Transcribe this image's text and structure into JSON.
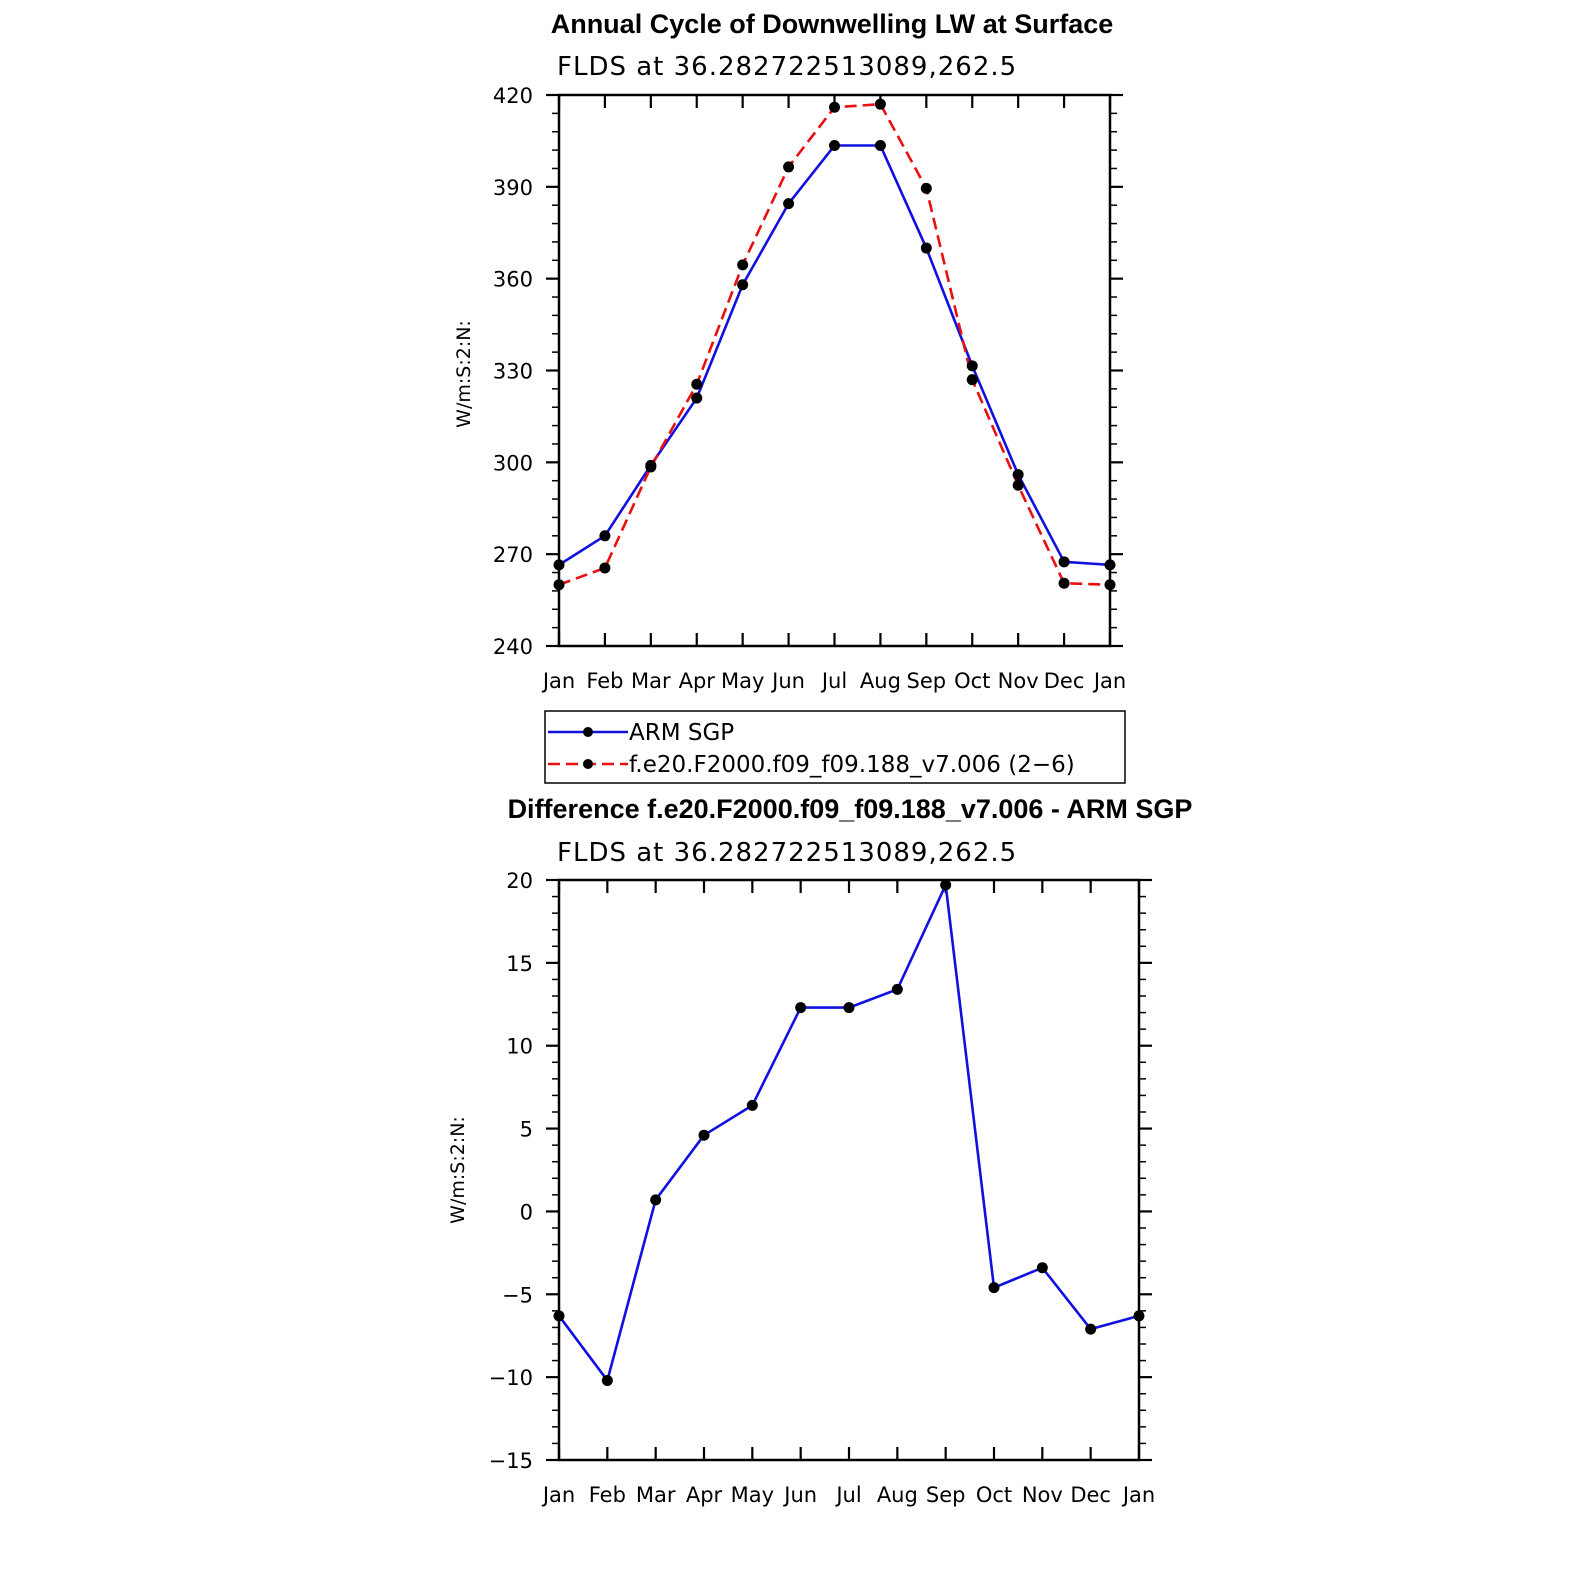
{
  "chart_data": [
    {
      "type": "line",
      "title": "Annual Cycle of Downwelling LW at Surface",
      "subtitle": "FLDS at 36.282722513089,262.5",
      "ylabel": "W/m:S:2:N:",
      "xlabel": "",
      "categories": [
        "Jan",
        "Feb",
        "Mar",
        "Apr",
        "May",
        "Jun",
        "Jul",
        "Aug",
        "Sep",
        "Oct",
        "Nov",
        "Dec",
        "Jan"
      ],
      "ylim": [
        240,
        420
      ],
      "yticks": [
        "240",
        "270",
        "300",
        "330",
        "360",
        "390",
        "420"
      ],
      "series": [
        {
          "name": "ARM SGP",
          "color": "#1010e0",
          "dash": "solid",
          "values": [
            266.5,
            276,
            299,
            321,
            358,
            384.5,
            403.5,
            403.5,
            370,
            331.5,
            296,
            267.5,
            266.5
          ]
        },
        {
          "name": "f.e20.F2000.f09_f09.188_v7.006 (2−6)",
          "color": "#e81010",
          "dash": "dashed",
          "values": [
            260,
            265.5,
            298.5,
            325.5,
            364.5,
            396.5,
            416,
            417,
            389.5,
            327,
            292.5,
            260.5,
            260
          ]
        }
      ],
      "legend": {
        "placement": "bottom",
        "entries": [
          "ARM SGP",
          "f.e20.F2000.f09_f09.188_v7.006 (2−6)"
        ]
      }
    },
    {
      "type": "line",
      "title": "Difference f.e20.F2000.f09_f09.188_v7.006 - ARM SGP",
      "subtitle": "FLDS at 36.282722513089,262.5",
      "ylabel": "W/m:S:2:N:",
      "xlabel": "",
      "categories": [
        "Jan",
        "Feb",
        "Mar",
        "Apr",
        "May",
        "Jun",
        "Jul",
        "Aug",
        "Sep",
        "Oct",
        "Nov",
        "Dec",
        "Jan"
      ],
      "ylim": [
        -15,
        20
      ],
      "yticks": [
        "−15",
        "−10",
        "−5",
        "0",
        "5",
        "10",
        "15",
        "20"
      ],
      "series": [
        {
          "name": "Difference",
          "color": "#1010e0",
          "dash": "solid",
          "values": [
            -6.3,
            -10.2,
            0.7,
            4.6,
            6.4,
            12.3,
            12.3,
            13.4,
            19.7,
            -4.6,
            -3.4,
            -7.1,
            -6.3
          ]
        }
      ]
    }
  ]
}
